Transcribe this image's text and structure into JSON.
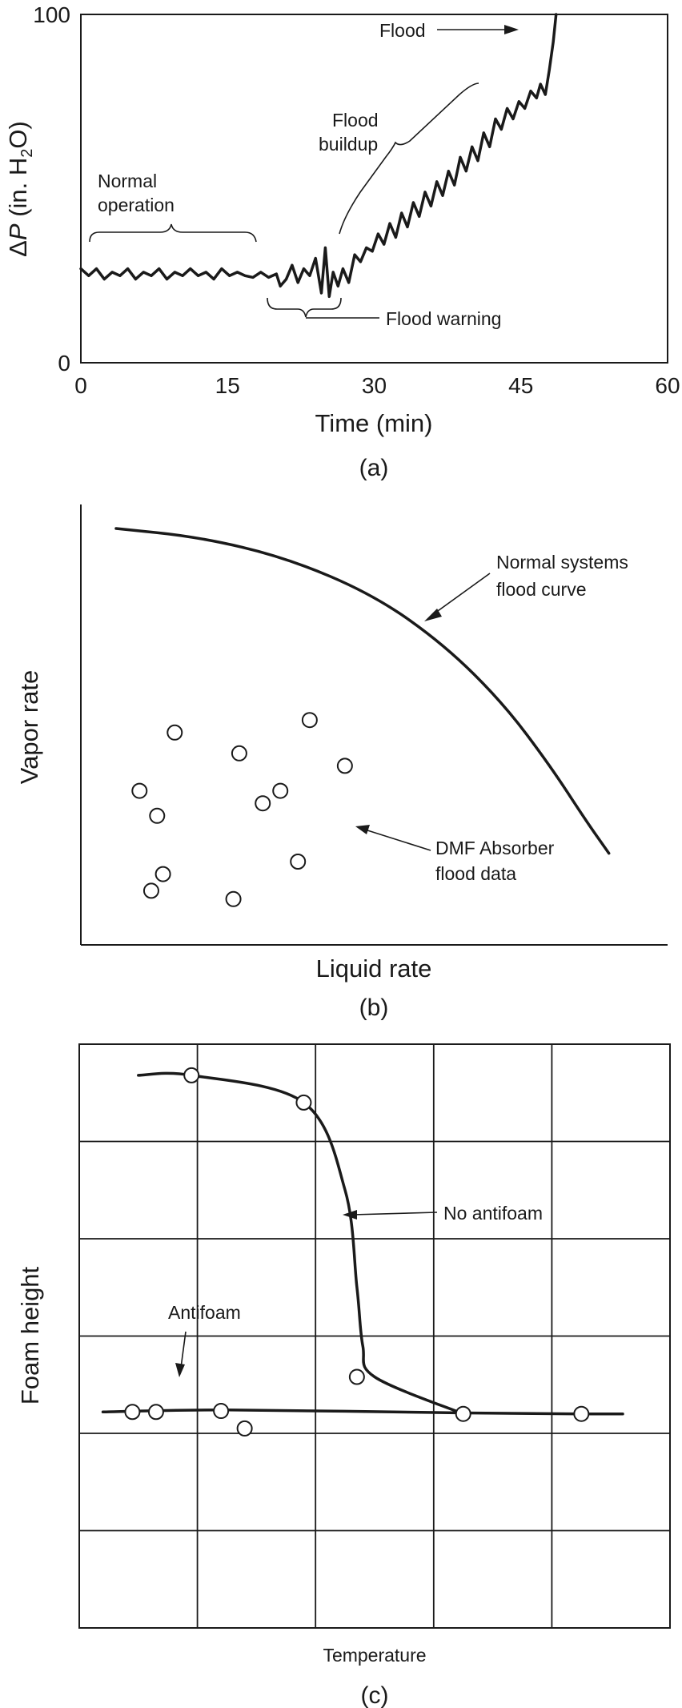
{
  "chart_data": [
    {
      "type": "line",
      "panel_label": "(a)",
      "xlabel": "Time (min)",
      "ylabel": "ΔP (in. H2O)",
      "xlim": [
        0,
        60
      ],
      "ylim": [
        0,
        100
      ],
      "x_ticks": [
        "0",
        "15",
        "30",
        "45",
        "60"
      ],
      "y_ticks": [
        "0",
        "100"
      ],
      "series": [
        {
          "x": [
            0,
            0.8,
            1.6,
            2.4,
            3.2,
            4,
            4.8,
            5.6,
            6.4,
            7.2,
            8,
            8.8,
            9.6,
            10.4,
            11.2,
            12,
            12.8,
            13.6,
            14.4,
            15.2,
            16,
            16.8,
            17.6,
            18.4,
            19.2,
            20,
            20.4,
            21,
            21.6,
            22.2,
            22.8,
            23.4,
            24,
            24.6,
            25,
            25.4,
            25.8,
            26.3,
            26.8,
            27.4,
            28,
            28.6,
            29.2,
            29.8,
            30.4,
            31,
            31.6,
            32.2,
            32.8,
            33.4,
            34,
            34.6,
            35.2,
            35.8,
            36.4,
            37,
            37.6,
            38.2,
            38.8,
            39.4,
            40,
            40.6,
            41.2,
            41.8,
            42.4,
            43,
            43.6,
            44.2,
            44.8,
            45.4,
            46,
            46.6,
            47,
            47.5,
            47.9,
            48.3,
            48.6
          ],
          "values": [
            27,
            25,
            27,
            24,
            26,
            25,
            27,
            24,
            26,
            25,
            27,
            24,
            26,
            25,
            27,
            25,
            26,
            24,
            27,
            25,
            26,
            25,
            24.5,
            26,
            24.5,
            25.5,
            22,
            24,
            28,
            23,
            27,
            25,
            30,
            20,
            33,
            19,
            26,
            22,
            27,
            23,
            31,
            29,
            33,
            32,
            37,
            34,
            40,
            36,
            43,
            39,
            46,
            42,
            49,
            45,
            52,
            48,
            55,
            51,
            59,
            55,
            62,
            58,
            66,
            62,
            70,
            67,
            73,
            70,
            75,
            73,
            78,
            76,
            80,
            77,
            84,
            92,
            100
          ]
        }
      ],
      "annotations": {
        "normal_operation": "Normal\noperation",
        "flood_buildup": "Flood\nbuildup",
        "flood": "Flood",
        "flood_warning": "Flood warning"
      }
    },
    {
      "type": "scatter",
      "panel_label": "(b)",
      "xlabel": "Liquid rate",
      "ylabel": "Vapor rate",
      "xlim": [
        0,
        100
      ],
      "ylim": [
        0,
        100
      ],
      "curve": {
        "name": "Normal systems flood curve",
        "x": [
          6,
          20,
          35,
          50,
          62,
          72,
          80,
          86,
          90
        ],
        "values": [
          100,
          98,
          93,
          84,
          72,
          58,
          43,
          30,
          22
        ]
      },
      "points": [
        {
          "x": 16,
          "y": 51
        },
        {
          "x": 39,
          "y": 54
        },
        {
          "x": 27,
          "y": 46
        },
        {
          "x": 45,
          "y": 43
        },
        {
          "x": 10,
          "y": 37
        },
        {
          "x": 34,
          "y": 37
        },
        {
          "x": 31,
          "y": 34
        },
        {
          "x": 13,
          "y": 31
        },
        {
          "x": 37,
          "y": 20
        },
        {
          "x": 14,
          "y": 17
        },
        {
          "x": 12,
          "y": 13
        },
        {
          "x": 26,
          "y": 11
        }
      ],
      "annotations": {
        "flood_curve": "Normal systems\nflood curve",
        "dmf_data": "DMF Absorber\nflood data"
      }
    },
    {
      "type": "line",
      "panel_label": "(c)",
      "xlabel": "Temperature",
      "ylabel": "Foam height",
      "xlim": [
        0,
        5
      ],
      "ylim": [
        0,
        6
      ],
      "grid": true,
      "series": [
        {
          "name": "No antifoam",
          "x": [
            0.5,
            0.95,
            1.9,
            2.25,
            2.35,
            2.4,
            2.5,
            3.25
          ],
          "values": [
            5.68,
            5.68,
            5.4,
            4.5,
            3.5,
            2.9,
            2.58,
            2.2
          ],
          "markers": [
            {
              "x": 0.95,
              "y": 5.68
            },
            {
              "x": 1.9,
              "y": 5.4
            },
            {
              "x": 2.35,
              "y": 2.58
            },
            {
              "x": 3.25,
              "y": 2.2
            },
            {
              "x": 4.25,
              "y": 2.2
            }
          ]
        },
        {
          "name": "Antifoam",
          "x": [
            0.2,
            1.25,
            3.25,
            4.25,
            4.6
          ],
          "values": [
            2.22,
            2.24,
            2.21,
            2.2,
            2.2
          ],
          "markers": [
            {
              "x": 0.45,
              "y": 2.22
            },
            {
              "x": 0.65,
              "y": 2.22
            },
            {
              "x": 1.2,
              "y": 2.23
            },
            {
              "x": 1.4,
              "y": 2.05
            }
          ]
        }
      ],
      "annotations": {
        "no_antifoam": "No antifoam",
        "antifoam": "Antifoam"
      }
    }
  ]
}
